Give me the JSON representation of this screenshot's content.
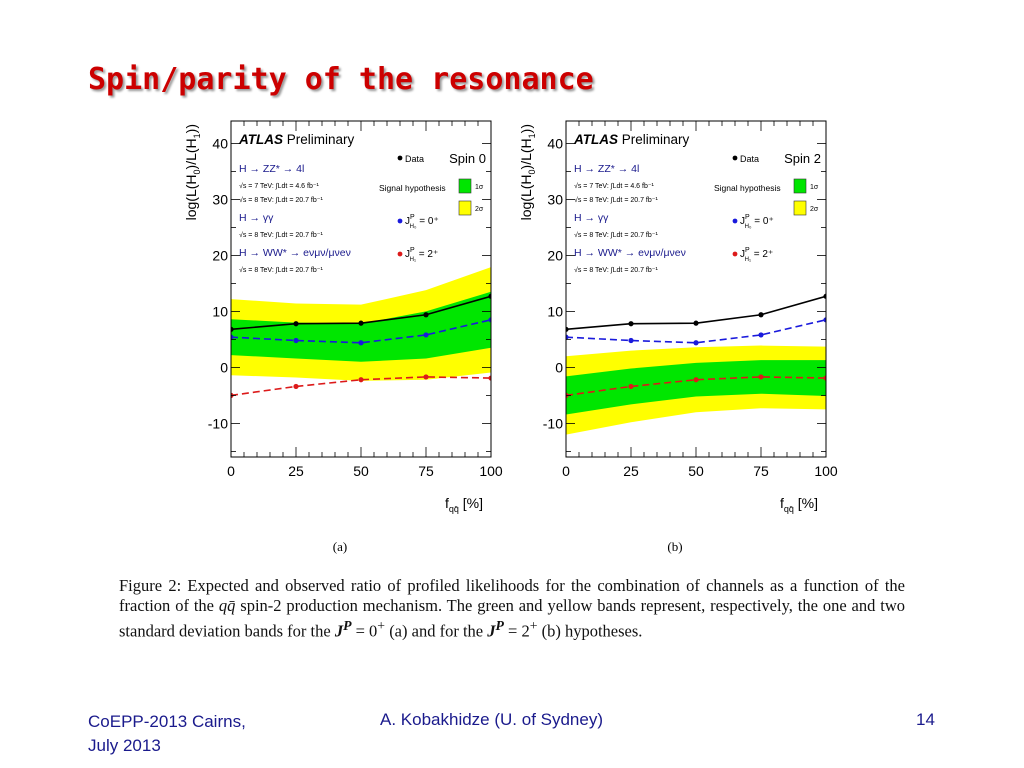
{
  "slide": {
    "title": "Spin/parity of the resonance",
    "footer_left_1": "CoEPP-2013 Cairns,",
    "footer_left_2": "July 2013",
    "footer_center": "A. Kobakhidze (U. of Sydney)",
    "footer_right": "14"
  },
  "figure": {
    "sublabels": [
      "(a)",
      "(b)"
    ],
    "caption_parts": [
      "Figure 2:  Expected and observed ratio of profiled likelihoods for the combination of channels as a function of the fraction of the ",
      "qq̄",
      " spin-2 production mechanism. The green and yellow bands represent, respectively, the one and two standard deviation bands for the ",
      "J",
      "P",
      " = 0",
      "+",
      " (a) and for the ",
      "J",
      "P",
      " = 2",
      "+",
      " (b) hypotheses."
    ]
  },
  "colors": {
    "title": "#cc0000",
    "data": "#000000",
    "spin0": "#1a1adc",
    "spin2": "#dc1a1a",
    "band1": "#00e600",
    "band2": "#ffff00",
    "channel_text": "#1a1a8c"
  },
  "chart_data": [
    {
      "type": "line",
      "panel": "(a)",
      "spin_label": "Spin 0",
      "ylabel": "log(L(H",
      "ylabel_sub1": "0",
      "ylabel_mid": ")/L(H",
      "ylabel_sub2": "1",
      "ylabel_end": "))",
      "xlabel_main": "f",
      "xlabel_sub": "qq̄",
      "xlabel_unit": " [%]",
      "x": [
        0,
        25,
        50,
        75,
        100
      ],
      "x_ticks": [
        "0",
        "25",
        "50",
        "75",
        "100"
      ],
      "y_ticks": [
        "40",
        "30",
        "20",
        "10",
        "0",
        "-10"
      ],
      "ylim": [
        -16,
        44
      ],
      "xlim": [
        0,
        100
      ],
      "experiment": "ATLAS",
      "experiment_tag": "Preliminary",
      "channels": [
        {
          "name": "H → ZZ* → 4l",
          "lumi": [
            "√s = 7 TeV: ∫Ldt = 4.6 fb⁻¹",
            "√s = 8 TeV: ∫Ldt = 20.7 fb⁻¹"
          ]
        },
        {
          "name": "H → γγ",
          "lumi": [
            "√s = 8 TeV: ∫Ldt = 20.7 fb⁻¹"
          ]
        },
        {
          "name": "H → WW* → eνμν/μνeν",
          "lumi": [
            "√s = 8 TeV: ∫Ldt = 20.7 fb⁻¹"
          ]
        }
      ],
      "legend": {
        "data": "Data",
        "signal": "Signal hypothesis",
        "one_sigma": "1σ",
        "two_sigma": "2σ",
        "h0": "J",
        "h0_sup": "P",
        "h0_sub": "H₀",
        "h0_val": " = 0⁺",
        "h1": "J",
        "h1_sup": "P",
        "h1_sub": "H₁",
        "h1_val": " = 2⁺"
      },
      "series": [
        {
          "name": "Data",
          "values": [
            6.8,
            7.8,
            7.9,
            9.4,
            12.7
          ]
        },
        {
          "name": "J^P_H0 = 0+",
          "values": [
            5.4,
            4.8,
            4.4,
            5.8,
            8.5
          ]
        },
        {
          "name": "J^P_H1 = 2+",
          "values": [
            -5.0,
            -3.4,
            -2.2,
            -1.7,
            -1.9
          ]
        }
      ],
      "band_center": [
        5.4,
        4.8,
        4.4,
        5.8,
        8.5
      ],
      "band_1sigma": [
        3.2,
        3.2,
        3.4,
        4.2,
        5.0
      ],
      "band_2sigma": [
        6.8,
        6.6,
        6.8,
        8.0,
        9.4
      ]
    },
    {
      "type": "line",
      "panel": "(b)",
      "spin_label": "Spin 2",
      "ylabel": "log(L(H",
      "ylabel_sub1": "0",
      "ylabel_mid": ")/L(H",
      "ylabel_sub2": "1",
      "ylabel_end": "))",
      "xlabel_main": "f",
      "xlabel_sub": "qq̄",
      "xlabel_unit": " [%]",
      "x": [
        0,
        25,
        50,
        75,
        100
      ],
      "x_ticks": [
        "0",
        "25",
        "50",
        "75",
        "100"
      ],
      "y_ticks": [
        "40",
        "30",
        "20",
        "10",
        "0",
        "-10"
      ],
      "ylim": [
        -16,
        44
      ],
      "xlim": [
        0,
        100
      ],
      "experiment": "ATLAS",
      "experiment_tag": "Preliminary",
      "channels": [
        {
          "name": "H → ZZ* → 4l",
          "lumi": [
            "√s = 7 TeV: ∫Ldt = 4.6 fb⁻¹",
            "√s = 8 TeV: ∫Ldt = 20.7 fb⁻¹"
          ]
        },
        {
          "name": "H → γγ",
          "lumi": [
            "√s = 8 TeV: ∫Ldt = 20.7 fb⁻¹"
          ]
        },
        {
          "name": "H → WW* → eνμν/μνeν",
          "lumi": [
            "√s = 8 TeV: ∫Ldt = 20.7 fb⁻¹"
          ]
        }
      ],
      "legend": {
        "data": "Data",
        "signal": "Signal hypothesis",
        "one_sigma": "1σ",
        "two_sigma": "2σ",
        "h0": "J",
        "h0_sup": "P",
        "h0_sub": "H₀",
        "h0_val": " = 0⁺",
        "h1": "J",
        "h1_sup": "P",
        "h1_sub": "H₁",
        "h1_val": " = 2⁺"
      },
      "series": [
        {
          "name": "Data",
          "values": [
            6.8,
            7.8,
            7.9,
            9.4,
            12.7
          ]
        },
        {
          "name": "J^P_H0 = 0+",
          "values": [
            5.4,
            4.8,
            4.4,
            5.8,
            8.5
          ]
        },
        {
          "name": "J^P_H1 = 2+",
          "values": [
            -5.0,
            -3.4,
            -2.2,
            -1.7,
            -1.9
          ]
        }
      ],
      "band_center": [
        -5.0,
        -3.4,
        -2.2,
        -1.7,
        -1.9
      ],
      "band_1sigma": [
        3.4,
        3.2,
        3.0,
        3.0,
        3.2
      ],
      "band_2sigma": [
        7.0,
        6.4,
        5.8,
        5.6,
        5.6
      ]
    }
  ]
}
